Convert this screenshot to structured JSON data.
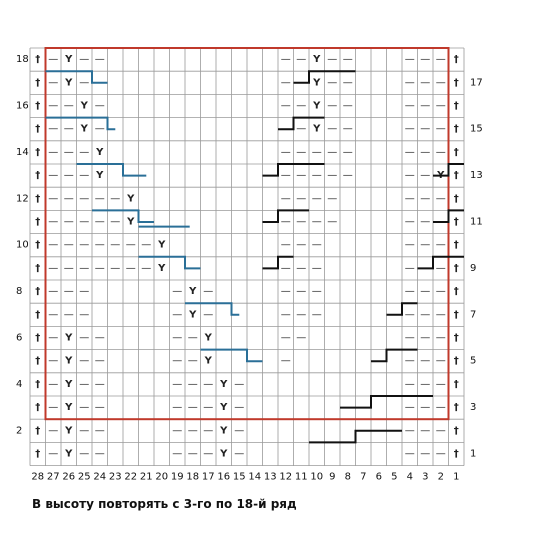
{
  "caption": "В высоту повторять с 3-го по 18-й ряд",
  "row_numbers_left": [
    "2",
    "4",
    "6",
    "8",
    "10",
    "12",
    "14",
    "16",
    "18"
  ],
  "row_numbers_right": [
    "1",
    "3",
    "5",
    "7",
    "9",
    "11",
    "13",
    "15",
    "17"
  ],
  "column_numbers": [
    "28",
    "27",
    "26",
    "25",
    "24",
    "23",
    "22",
    "21",
    "20",
    "19",
    "18",
    "17",
    "16",
    "15",
    "14",
    "13",
    "12",
    "11",
    "10",
    "9",
    "8",
    "7",
    "6",
    "5",
    "4",
    "3",
    "2",
    "1"
  ],
  "symbols": {
    "edge": "†",
    "purl": "—",
    "slip": "Y"
  },
  "colors": {
    "repeat_frame": "#c0392b",
    "blue_step": "#2a6f97",
    "black_step": "#111111",
    "grid": "#9a9a9a"
  },
  "rows": {
    "18": [
      [
        "e",
        1
      ],
      [
        "p",
        2
      ],
      [
        "y",
        3
      ],
      [
        "p",
        4
      ],
      [
        "p",
        5
      ],
      [
        "p",
        17
      ],
      [
        "p",
        18
      ],
      [
        "y",
        19
      ],
      [
        "p",
        20
      ],
      [
        "p",
        21
      ],
      [
        "p",
        25
      ],
      [
        "p",
        26
      ],
      [
        "p",
        27
      ],
      [
        "e",
        28
      ]
    ],
    "17": [
      [
        "e",
        1
      ],
      [
        "p",
        2
      ],
      [
        "y",
        3
      ],
      [
        "p",
        4
      ],
      [
        "p",
        5
      ],
      [
        "p",
        17
      ],
      [
        "p",
        18
      ],
      [
        "y",
        19
      ],
      [
        "p",
        20
      ],
      [
        "p",
        21
      ],
      [
        "p",
        25
      ],
      [
        "p",
        26
      ],
      [
        "p",
        27
      ],
      [
        "e",
        28
      ]
    ],
    "16": [
      [
        "e",
        1
      ],
      [
        "p",
        2
      ],
      [
        "p",
        3
      ],
      [
        "y",
        4
      ],
      [
        "p",
        5
      ],
      [
        "p",
        17
      ],
      [
        "p",
        18
      ],
      [
        "y",
        19
      ],
      [
        "p",
        20
      ],
      [
        "p",
        21
      ],
      [
        "p",
        25
      ],
      [
        "p",
        26
      ],
      [
        "p",
        27
      ],
      [
        "e",
        28
      ]
    ],
    "15": [
      [
        "e",
        1
      ],
      [
        "p",
        2
      ],
      [
        "p",
        3
      ],
      [
        "y",
        4
      ],
      [
        "p",
        5
      ],
      [
        "p",
        17
      ],
      [
        "p",
        18
      ],
      [
        "y",
        19
      ],
      [
        "p",
        20
      ],
      [
        "p",
        21
      ],
      [
        "p",
        25
      ],
      [
        "p",
        26
      ],
      [
        "p",
        27
      ],
      [
        "e",
        28
      ]
    ],
    "14": [
      [
        "e",
        1
      ],
      [
        "p",
        2
      ],
      [
        "p",
        3
      ],
      [
        "p",
        4
      ],
      [
        "y",
        5
      ],
      [
        "p",
        17
      ],
      [
        "p",
        18
      ],
      [
        "p",
        19
      ],
      [
        "p",
        20
      ],
      [
        "p",
        21
      ],
      [
        "p",
        25
      ],
      [
        "p",
        26
      ],
      [
        "p",
        27
      ],
      [
        "e",
        28
      ]
    ],
    "13": [
      [
        "e",
        1
      ],
      [
        "p",
        2
      ],
      [
        "p",
        3
      ],
      [
        "p",
        4
      ],
      [
        "y",
        5
      ],
      [
        "p",
        17
      ],
      [
        "p",
        18
      ],
      [
        "p",
        19
      ],
      [
        "p",
        20
      ],
      [
        "p",
        21
      ],
      [
        "p",
        25
      ],
      [
        "p",
        26
      ],
      [
        "y",
        27
      ],
      [
        "e",
        28
      ]
    ],
    "12": [
      [
        "e",
        1
      ],
      [
        "p",
        2
      ],
      [
        "p",
        3
      ],
      [
        "p",
        4
      ],
      [
        "p",
        5
      ],
      [
        "p",
        6
      ],
      [
        "y",
        7
      ],
      [
        "p",
        17
      ],
      [
        "p",
        18
      ],
      [
        "p",
        19
      ],
      [
        "p",
        20
      ],
      [
        "p",
        25
      ],
      [
        "p",
        26
      ],
      [
        "p",
        27
      ],
      [
        "e",
        28
      ]
    ],
    "11": [
      [
        "e",
        1
      ],
      [
        "p",
        2
      ],
      [
        "p",
        3
      ],
      [
        "p",
        4
      ],
      [
        "p",
        5
      ],
      [
        "p",
        6
      ],
      [
        "y",
        7
      ],
      [
        "p",
        17
      ],
      [
        "p",
        18
      ],
      [
        "p",
        19
      ],
      [
        "p",
        20
      ],
      [
        "p",
        25
      ],
      [
        "p",
        26
      ],
      [
        "p",
        27
      ],
      [
        "e",
        28
      ]
    ],
    "10": [
      [
        "e",
        1
      ],
      [
        "p",
        2
      ],
      [
        "p",
        3
      ],
      [
        "p",
        4
      ],
      [
        "p",
        5
      ],
      [
        "p",
        6
      ],
      [
        "p",
        7
      ],
      [
        "p",
        8
      ],
      [
        "y",
        9
      ],
      [
        "p",
        17
      ],
      [
        "p",
        18
      ],
      [
        "p",
        19
      ],
      [
        "p",
        25
      ],
      [
        "p",
        26
      ],
      [
        "p",
        27
      ],
      [
        "e",
        28
      ]
    ],
    "9": [
      [
        "e",
        1
      ],
      [
        "p",
        2
      ],
      [
        "p",
        3
      ],
      [
        "p",
        4
      ],
      [
        "p",
        5
      ],
      [
        "p",
        6
      ],
      [
        "p",
        7
      ],
      [
        "p",
        8
      ],
      [
        "y",
        9
      ],
      [
        "p",
        17
      ],
      [
        "p",
        18
      ],
      [
        "p",
        19
      ],
      [
        "p",
        25
      ],
      [
        "p",
        26
      ],
      [
        "p",
        27
      ],
      [
        "e",
        28
      ]
    ],
    "8": [
      [
        "e",
        1
      ],
      [
        "p",
        2
      ],
      [
        "p",
        3
      ],
      [
        "p",
        4
      ],
      [
        "p",
        10
      ],
      [
        "y",
        11
      ],
      [
        "p",
        12
      ],
      [
        "p",
        17
      ],
      [
        "p",
        18
      ],
      [
        "p",
        19
      ],
      [
        "p",
        25
      ],
      [
        "p",
        26
      ],
      [
        "p",
        27
      ],
      [
        "e",
        28
      ]
    ],
    "7": [
      [
        "e",
        1
      ],
      [
        "p",
        2
      ],
      [
        "p",
        3
      ],
      [
        "p",
        4
      ],
      [
        "p",
        10
      ],
      [
        "y",
        11
      ],
      [
        "p",
        12
      ],
      [
        "p",
        17
      ],
      [
        "p",
        18
      ],
      [
        "p",
        19
      ],
      [
        "p",
        25
      ],
      [
        "p",
        26
      ],
      [
        "p",
        27
      ],
      [
        "e",
        28
      ]
    ],
    "6": [
      [
        "e",
        1
      ],
      [
        "p",
        2
      ],
      [
        "y",
        3
      ],
      [
        "p",
        4
      ],
      [
        "p",
        5
      ],
      [
        "p",
        10
      ],
      [
        "p",
        11
      ],
      [
        "y",
        12
      ],
      [
        "p",
        17
      ],
      [
        "p",
        18
      ],
      [
        "p",
        25
      ],
      [
        "p",
        26
      ],
      [
        "p",
        27
      ],
      [
        "e",
        28
      ]
    ],
    "5": [
      [
        "e",
        1
      ],
      [
        "p",
        2
      ],
      [
        "y",
        3
      ],
      [
        "p",
        4
      ],
      [
        "p",
        5
      ],
      [
        "p",
        10
      ],
      [
        "p",
        11
      ],
      [
        "y",
        12
      ],
      [
        "p",
        17
      ],
      [
        "p",
        25
      ],
      [
        "p",
        26
      ],
      [
        "p",
        27
      ],
      [
        "e",
        28
      ]
    ],
    "4": [
      [
        "e",
        1
      ],
      [
        "p",
        2
      ],
      [
        "y",
        3
      ],
      [
        "p",
        4
      ],
      [
        "p",
        5
      ],
      [
        "p",
        10
      ],
      [
        "p",
        11
      ],
      [
        "p",
        12
      ],
      [
        "y",
        13
      ],
      [
        "p",
        14
      ],
      [
        "p",
        25
      ],
      [
        "p",
        26
      ],
      [
        "p",
        27
      ],
      [
        "e",
        28
      ]
    ],
    "3": [
      [
        "e",
        1
      ],
      [
        "p",
        2
      ],
      [
        "y",
        3
      ],
      [
        "p",
        4
      ],
      [
        "p",
        5
      ],
      [
        "p",
        10
      ],
      [
        "p",
        11
      ],
      [
        "p",
        12
      ],
      [
        "y",
        13
      ],
      [
        "p",
        14
      ],
      [
        "p",
        25
      ],
      [
        "p",
        26
      ],
      [
        "p",
        27
      ],
      [
        "e",
        28
      ]
    ],
    "2": [
      [
        "e",
        1
      ],
      [
        "p",
        2
      ],
      [
        "y",
        3
      ],
      [
        "p",
        4
      ],
      [
        "p",
        5
      ],
      [
        "p",
        10
      ],
      [
        "p",
        11
      ],
      [
        "p",
        12
      ],
      [
        "y",
        13
      ],
      [
        "p",
        14
      ],
      [
        "p",
        25
      ],
      [
        "p",
        26
      ],
      [
        "p",
        27
      ],
      [
        "e",
        28
      ]
    ],
    "1": [
      [
        "e",
        1
      ],
      [
        "p",
        2
      ],
      [
        "y",
        3
      ],
      [
        "p",
        4
      ],
      [
        "p",
        5
      ],
      [
        "p",
        10
      ],
      [
        "p",
        11
      ],
      [
        "p",
        12
      ],
      [
        "y",
        13
      ],
      [
        "p",
        14
      ],
      [
        "p",
        25
      ],
      [
        "p",
        26
      ],
      [
        "p",
        27
      ],
      [
        "e",
        28
      ]
    ]
  }
}
